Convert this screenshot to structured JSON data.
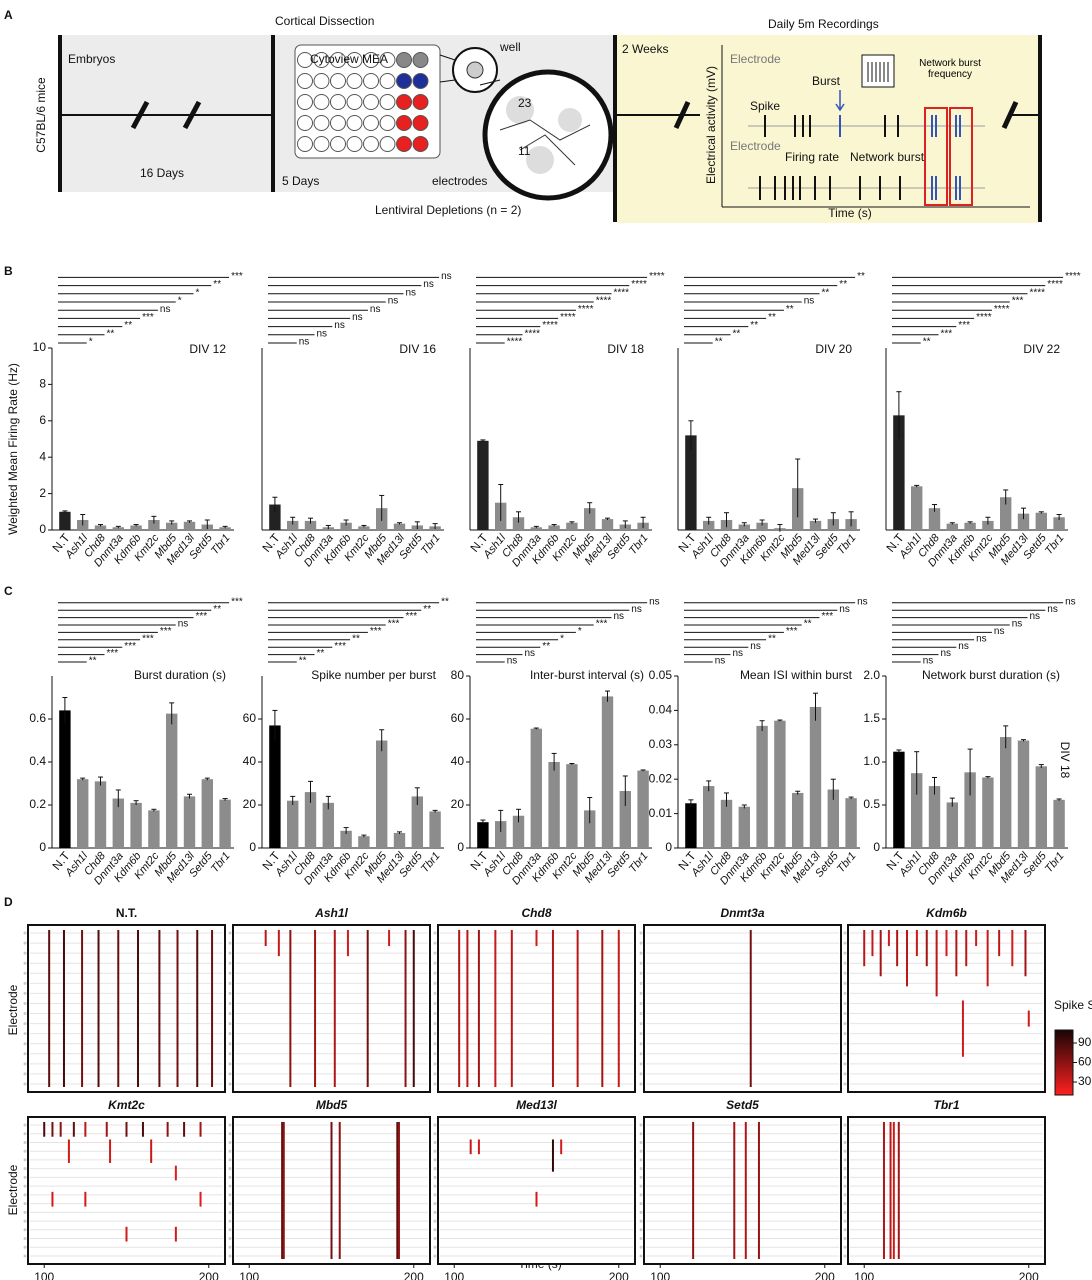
{
  "panel_labels": [
    "A",
    "B",
    "C",
    "D"
  ],
  "panel_a": {
    "title_left": "Cortical Dissection",
    "mice": "C57BL/6 mice",
    "embryos": "Embryos",
    "days16": "16 Days",
    "mea": "Cytoview MEA",
    "well": "well",
    "well_numbers": [
      "23",
      "11"
    ],
    "days5": "5 Days",
    "electrodes": "electrodes",
    "depletions": "Lentiviral Depletions (n = 2)",
    "weeks": "2 Weeks",
    "recordings": "Daily 5m Recordings",
    "electrode_top": "Electrode",
    "y_label": "Electrical activity (mV)",
    "burst": "Burst",
    "spike": "Spike",
    "nb_freq": "Network burst frequency",
    "electrode_bottom": "Electrode",
    "firing_rate": "Firing rate",
    "network_burst": "Network burst",
    "time": "Time (s)"
  },
  "panel_c_label": "DIV 18",
  "panel_d": {
    "x_label": "Time (s)",
    "y_label": "Electrode",
    "colorbar": {
      "title": "Spike Size",
      "lim": [
        10,
        110
      ],
      "ticks": [
        30,
        60,
        90
      ]
    }
  },
  "chart_data": [
    {
      "type": "bar",
      "title": "DIV 12",
      "y_label": "Weighted Mean Firing Rate (Hz)",
      "categories": [
        "N.T",
        "Ash1l",
        "Chd8",
        "Dnmt3a",
        "Kdm6b",
        "Kmt2c",
        "Mbd5",
        "Med13l",
        "Setd5",
        "Tbr1"
      ],
      "values": [
        1.0,
        0.55,
        0.25,
        0.15,
        0.25,
        0.55,
        0.4,
        0.45,
        0.3,
        0.15
      ],
      "errors": [
        0.05,
        0.3,
        0.05,
        0.05,
        0.05,
        0.2,
        0.1,
        0.05,
        0.25,
        0.05
      ],
      "significance": [
        "*",
        "**",
        "**",
        "***",
        "ns",
        "*",
        "*",
        "**",
        "***"
      ],
      "colors": [
        "#222222",
        "#8c8c8c"
      ],
      "ylim": [
        0,
        10
      ],
      "yticks": [
        0,
        2,
        4,
        6,
        8,
        10
      ]
    },
    {
      "type": "bar",
      "title": "DIV 16",
      "categories": [
        "N.T",
        "Ash1l",
        "Chd8",
        "Dnmt3a",
        "Kdm6b",
        "Kmt2c",
        "Mbd5",
        "Med13l",
        "Setd5",
        "Tbr1"
      ],
      "values": [
        1.4,
        0.5,
        0.5,
        0.15,
        0.4,
        0.2,
        1.2,
        0.35,
        0.25,
        0.2
      ],
      "errors": [
        0.4,
        0.2,
        0.15,
        0.1,
        0.15,
        0.05,
        0.7,
        0.05,
        0.2,
        0.15
      ],
      "significance": [
        "ns",
        "ns",
        "ns",
        "ns",
        "ns",
        "ns",
        "ns",
        "ns",
        "ns"
      ],
      "colors": [
        "#222222",
        "#8c8c8c"
      ],
      "ylim": [
        0,
        10
      ]
    },
    {
      "type": "bar",
      "title": "DIV 18",
      "categories": [
        "N.T",
        "Ash1l",
        "Chd8",
        "Dnmt3a",
        "Kdm6b",
        "Kmt2c",
        "Mbd5",
        "Med13l",
        "Setd5",
        "Tbr1"
      ],
      "values": [
        4.9,
        1.5,
        0.7,
        0.15,
        0.25,
        0.4,
        1.2,
        0.6,
        0.3,
        0.4
      ],
      "errors": [
        0.05,
        1.0,
        0.3,
        0.05,
        0.05,
        0.05,
        0.3,
        0.05,
        0.2,
        0.3
      ],
      "significance": [
        "****",
        "****",
        "****",
        "****",
        "****",
        "****",
        "****",
        "****",
        "****"
      ],
      "colors": [
        "#222222",
        "#8c8c8c"
      ],
      "ylim": [
        0,
        10
      ]
    },
    {
      "type": "bar",
      "title": "DIV 20",
      "categories": [
        "N.T",
        "Ash1l",
        "Chd8",
        "Dnmt3a",
        "Kdm6b",
        "Kmt2c",
        "Mbd5",
        "Med13l",
        "Setd5",
        "Tbr1"
      ],
      "values": [
        5.2,
        0.5,
        0.55,
        0.3,
        0.4,
        0.1,
        2.3,
        0.5,
        0.6,
        0.6
      ],
      "errors": [
        0.8,
        0.2,
        0.4,
        0.1,
        0.15,
        0.2,
        1.6,
        0.1,
        0.35,
        0.4
      ],
      "significance": [
        "**",
        "**",
        "**",
        "**",
        "**",
        "ns",
        "**",
        "**",
        "**"
      ],
      "colors": [
        "#222222",
        "#8c8c8c"
      ],
      "ylim": [
        0,
        10
      ]
    },
    {
      "type": "bar",
      "title": "DIV 22",
      "categories": [
        "N.T",
        "Ash1l",
        "Chd8",
        "Dnmt3a",
        "Kdm6b",
        "Kmt2c",
        "Mbd5",
        "Med13l",
        "Setd5",
        "Tbr1"
      ],
      "values": [
        6.3,
        2.4,
        1.2,
        0.35,
        0.4,
        0.5,
        1.8,
        0.9,
        0.95,
        0.7
      ],
      "errors": [
        1.3,
        0.05,
        0.2,
        0.05,
        0.05,
        0.2,
        0.4,
        0.3,
        0.05,
        0.15
      ],
      "significance": [
        "**",
        "***",
        "***",
        "****",
        "****",
        "***",
        "****",
        "****",
        "****"
      ],
      "colors": [
        "#222222",
        "#8c8c8c"
      ],
      "ylim": [
        0,
        10
      ]
    },
    {
      "type": "bar",
      "title": "Burst duration (s)",
      "categories": [
        "N.T",
        "Ash1l",
        "Chd8",
        "Dnmt3a",
        "Kdm6b",
        "Kmt2c",
        "Mbd5",
        "Med13l",
        "Setd5",
        "Tbr1"
      ],
      "values": [
        0.64,
        0.32,
        0.31,
        0.23,
        0.21,
        0.175,
        0.625,
        0.24,
        0.32,
        0.225
      ],
      "errors": [
        0.06,
        0.005,
        0.02,
        0.04,
        0.01,
        0.005,
        0.05,
        0.01,
        0.005,
        0.005
      ],
      "significance": [
        "**",
        "***",
        "***",
        "***",
        "***",
        "ns",
        "***",
        "**",
        "***"
      ],
      "colors": [
        "#000000",
        "#8c8c8c"
      ],
      "ylim": [
        0,
        0.8
      ],
      "yticks": [
        0,
        0.2,
        0.4,
        0.6
      ]
    },
    {
      "type": "bar",
      "title": "Spike number per burst",
      "categories": [
        "N.T",
        "Ash1l",
        "Chd8",
        "Dnmt3a",
        "Kdm6b",
        "Kmt2c",
        "Mbd5",
        "Med13l",
        "Setd5",
        "Tbr1"
      ],
      "values": [
        57,
        22,
        26,
        21,
        8,
        5.5,
        50,
        7,
        24,
        17
      ],
      "errors": [
        7,
        2,
        5,
        3,
        1.5,
        0.5,
        5,
        0.5,
        4,
        0.5
      ],
      "significance": [
        "**",
        "**",
        "***",
        "**",
        "***",
        "***",
        "***",
        "**",
        "**"
      ],
      "colors": [
        "#000000",
        "#8c8c8c"
      ],
      "ylim": [
        0,
        80
      ],
      "yticks": [
        0,
        20,
        40,
        60
      ]
    },
    {
      "type": "bar",
      "title": "Inter-burst interval (s)",
      "categories": [
        "N.T",
        "Ash1l",
        "Chd8",
        "Dnmt3a",
        "Kdm6b",
        "Kmt2c",
        "Mbd5",
        "Med13l",
        "Setd5",
        "Tbr1"
      ],
      "values": [
        12,
        12.5,
        15,
        55.5,
        40,
        39,
        17.5,
        70.5,
        26.5,
        36
      ],
      "errors": [
        1,
        5,
        3,
        0.3,
        4,
        0.3,
        6,
        2.5,
        7,
        0.3
      ],
      "significance": [
        "ns",
        "ns",
        "**",
        "*",
        "*",
        "***",
        "ns",
        "ns",
        "ns"
      ],
      "colors": [
        "#000000",
        "#8c8c8c"
      ],
      "ylim": [
        0,
        80
      ],
      "yticks": [
        0,
        20,
        40,
        60,
        80
      ]
    },
    {
      "type": "bar",
      "title": "Mean ISI within burst",
      "categories": [
        "N.T",
        "Ash1l",
        "Chd8",
        "Dnmt3a",
        "Kdm6b",
        "Kmt2c",
        "Mbd5",
        "Med13l",
        "Setd5",
        "Tbr1"
      ],
      "values": [
        0.013,
        0.018,
        0.014,
        0.012,
        0.0355,
        0.037,
        0.016,
        0.041,
        0.017,
        0.0145
      ],
      "errors": [
        0.001,
        0.0015,
        0.002,
        0.0005,
        0.0015,
        0.0002,
        0.0005,
        0.004,
        0.003,
        0.0003
      ],
      "significance": [
        "ns",
        "ns",
        "ns",
        "**",
        "***",
        "**",
        "***",
        "ns",
        "ns"
      ],
      "colors": [
        "#000000",
        "#8c8c8c"
      ],
      "ylim": [
        0,
        0.05
      ],
      "yticks": [
        0,
        0.01,
        0.02,
        0.03,
        0.04,
        0.05
      ]
    },
    {
      "type": "bar",
      "title": "Network burst duration (s)",
      "categories": [
        "N.T",
        "Ash1l",
        "Chd8",
        "Dnmt3a",
        "Kdm6b",
        "Kmt2c",
        "Mbd5",
        "Med13l",
        "Setd5",
        "Tbr1"
      ],
      "values": [
        1.12,
        0.87,
        0.72,
        0.53,
        0.88,
        0.82,
        1.29,
        1.25,
        0.95,
        0.56
      ],
      "errors": [
        0.02,
        0.25,
        0.1,
        0.05,
        0.27,
        0.01,
        0.13,
        0.01,
        0.02,
        0.01
      ],
      "significance": [
        "ns",
        "ns",
        "ns",
        "ns",
        "ns",
        "ns",
        "ns",
        "ns",
        "ns"
      ],
      "colors": [
        "#000000",
        "#8c8c8c"
      ],
      "ylim": [
        0,
        2
      ],
      "yticks": [
        0,
        0.5,
        {
          "value": 1,
          "label": "1.0"
        },
        1.5,
        {
          "value": 2,
          "label": "2.0"
        }
      ]
    },
    {
      "type": "raster",
      "title": "N.T.",
      "xlim": [
        95,
        205
      ],
      "events": [
        [
          103,
          0,
          15,
          80
        ],
        [
          112,
          0,
          15,
          90
        ],
        [
          123,
          0,
          15,
          70
        ],
        [
          133,
          0,
          15,
          85
        ],
        [
          145,
          0,
          15,
          75
        ],
        [
          157,
          0,
          15,
          90
        ],
        [
          170,
          0,
          15,
          80
        ],
        [
          181,
          0,
          15,
          70
        ],
        [
          193,
          0,
          15,
          85
        ],
        [
          202,
          0,
          15,
          75
        ]
      ]
    },
    {
      "type": "raster",
      "title": "Ash1l",
      "xlim": [
        95,
        205
      ],
      "events": [
        [
          110,
          0,
          1,
          40
        ],
        [
          118,
          0,
          2,
          35
        ],
        [
          125,
          0,
          15,
          60
        ],
        [
          140,
          0,
          15,
          50
        ],
        [
          152,
          0,
          15,
          45
        ],
        [
          160,
          0,
          2,
          30
        ],
        [
          172,
          0,
          15,
          70
        ],
        [
          185,
          0,
          1,
          30
        ],
        [
          195,
          0,
          15,
          60
        ],
        [
          200,
          0,
          15,
          90
        ]
      ]
    },
    {
      "type": "raster",
      "title": "Chd8",
      "xlim": [
        95,
        205
      ],
      "events": [
        [
          103,
          0,
          15,
          45
        ],
        [
          108,
          0,
          15,
          40
        ],
        [
          115,
          0,
          15,
          50
        ],
        [
          125,
          0,
          15,
          35
        ],
        [
          135,
          0,
          15,
          40
        ],
        [
          150,
          0,
          1,
          30
        ],
        [
          160,
          0,
          15,
          45
        ],
        [
          175,
          0,
          15,
          40
        ],
        [
          190,
          0,
          15,
          50
        ],
        [
          200,
          0,
          15,
          35
        ]
      ]
    },
    {
      "type": "raster",
      "title": "Dnmt3a",
      "xlim": [
        95,
        205
      ],
      "events": [
        [
          155,
          0,
          15,
          70
        ]
      ]
    },
    {
      "type": "raster",
      "title": "Kdm6b",
      "xlim": [
        95,
        205
      ],
      "events": [
        [
          100,
          0,
          3,
          40
        ],
        [
          105,
          0,
          2,
          35
        ],
        [
          110,
          0,
          4,
          50
        ],
        [
          115,
          0,
          1,
          30
        ],
        [
          120,
          0,
          3,
          45
        ],
        [
          126,
          0,
          5,
          40
        ],
        [
          132,
          0,
          2,
          35
        ],
        [
          138,
          0,
          3,
          50
        ],
        [
          144,
          0,
          6,
          40
        ],
        [
          150,
          0,
          2,
          30
        ],
        [
          156,
          0,
          4,
          45
        ],
        [
          162,
          0,
          3,
          40
        ],
        [
          168,
          0,
          1,
          30
        ],
        [
          175,
          0,
          5,
          35
        ],
        [
          182,
          0,
          2,
          40
        ],
        [
          190,
          0,
          3,
          30
        ],
        [
          198,
          0,
          4,
          50
        ],
        [
          200,
          8,
          9,
          30
        ],
        [
          160,
          7,
          12,
          30
        ]
      ]
    },
    {
      "type": "raster",
      "title": "Kmt2c",
      "xlim": [
        95,
        205
      ],
      "xticks": [
        100,
        200
      ],
      "events": [
        [
          100,
          0,
          1,
          90
        ],
        [
          105,
          0,
          1,
          70
        ],
        [
          110,
          0,
          1,
          60
        ],
        [
          118,
          0,
          1,
          80
        ],
        [
          125,
          0,
          1,
          40
        ],
        [
          138,
          0,
          1,
          50
        ],
        [
          150,
          0,
          1,
          70
        ],
        [
          160,
          0,
          1,
          90
        ],
        [
          175,
          0,
          1,
          60
        ],
        [
          185,
          0,
          1,
          80
        ],
        [
          195,
          0,
          1,
          50
        ],
        [
          115,
          2,
          4,
          30
        ],
        [
          140,
          2,
          4,
          30
        ],
        [
          165,
          2,
          4,
          35
        ],
        [
          180,
          5,
          6,
          25
        ],
        [
          105,
          8,
          9,
          30
        ],
        [
          125,
          8,
          9,
          30
        ],
        [
          150,
          12,
          13,
          30
        ],
        [
          180,
          12,
          13,
          30
        ],
        [
          195,
          8,
          9,
          25
        ]
      ]
    },
    {
      "type": "raster",
      "title": "Mbd5",
      "xlim": [
        95,
        205
      ],
      "xticks": [
        100,
        200
      ],
      "events": [
        [
          120,
          0,
          15,
          80
        ],
        [
          121,
          0,
          15,
          60
        ],
        [
          150,
          0,
          15,
          70
        ],
        [
          155,
          0,
          15,
          60
        ],
        [
          190,
          0,
          15,
          80
        ],
        [
          191,
          0,
          15,
          60
        ]
      ]
    },
    {
      "type": "raster",
      "title": "Med13l",
      "xlim": [
        95,
        205
      ],
      "xticks": [
        100,
        200
      ],
      "events": [
        [
          110,
          2,
          3,
          35
        ],
        [
          115,
          2,
          3,
          30
        ],
        [
          160,
          2,
          5,
          100
        ],
        [
          165,
          2,
          3,
          30
        ],
        [
          150,
          8,
          9,
          30
        ]
      ]
    },
    {
      "type": "raster",
      "title": "Setd5",
      "xlim": [
        95,
        205
      ],
      "xticks": [
        100,
        200
      ],
      "events": [
        [
          120,
          0,
          15,
          60
        ],
        [
          145,
          0,
          15,
          50
        ],
        [
          152,
          0,
          15,
          45
        ],
        [
          160,
          0,
          15,
          55
        ]
      ]
    },
    {
      "type": "raster",
      "title": "Tbr1",
      "xlim": [
        95,
        205
      ],
      "xticks": [
        100,
        200
      ],
      "events": [
        [
          112,
          0,
          15,
          45
        ],
        [
          116,
          0,
          15,
          40
        ],
        [
          118,
          0,
          15,
          30
        ],
        [
          121,
          0,
          15,
          50
        ]
      ]
    }
  ]
}
